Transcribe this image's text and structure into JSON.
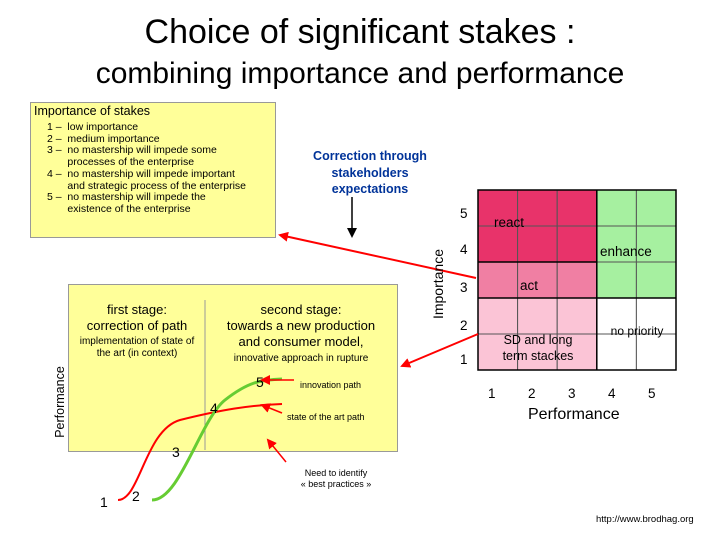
{
  "title": {
    "line1": "Choice of significant stakes :",
    "line2": "combining importance and performance"
  },
  "importance_box": {
    "heading": "Importance of stakes",
    "lines": [
      "1 –  low importance",
      "2 –  medium importance",
      "3 –  no mastership will impede some",
      "       processes of the enterprise",
      "4 –  no mastership will impede important",
      "       and strategic process of the enterprise",
      "5 –  no mastership will impede the",
      "       existence of the enterprise"
    ]
  },
  "correction_note": {
    "line1": "Correction through",
    "line2": "stakeholders",
    "line3": "expectations"
  },
  "performance_panel": {
    "axis_label": "Performance",
    "first_stage": {
      "line1": "first stage:",
      "line2": "correction of path",
      "detail1": "implementation of state of",
      "detail2": "the art (in context)"
    },
    "second_stage": {
      "line1": "second stage:",
      "line2": "towards a new production",
      "line3": "and consumer model,",
      "detail": "innovative approach in rupture"
    },
    "curve_numbers": [
      "1",
      "2",
      "3",
      "4",
      "5"
    ],
    "innovation_path": "innovation path",
    "state_path": "state of the art path",
    "best_practices_line1": "Need to identify",
    "best_practices_line2": "« best practices »"
  },
  "matrix": {
    "y_axis_label": "Importance",
    "x_axis_label": "Performance",
    "y_ticks": [
      "5",
      "4",
      "3",
      "2",
      "1"
    ],
    "x_ticks": [
      "1",
      "2",
      "3",
      "4",
      "5"
    ],
    "zones": {
      "react": "react",
      "enhance": "enhance",
      "act": "act",
      "sd": "SD and long",
      "sd2": "term stackes",
      "no_priority": "no priority"
    },
    "colors": {
      "dark_pink": "#e8336a",
      "medium_pink": "#f07fa3",
      "light_pink": "#fbc4d6",
      "green": "#a6f0a0"
    }
  },
  "footer_url": "http://www.brodhag.org"
}
